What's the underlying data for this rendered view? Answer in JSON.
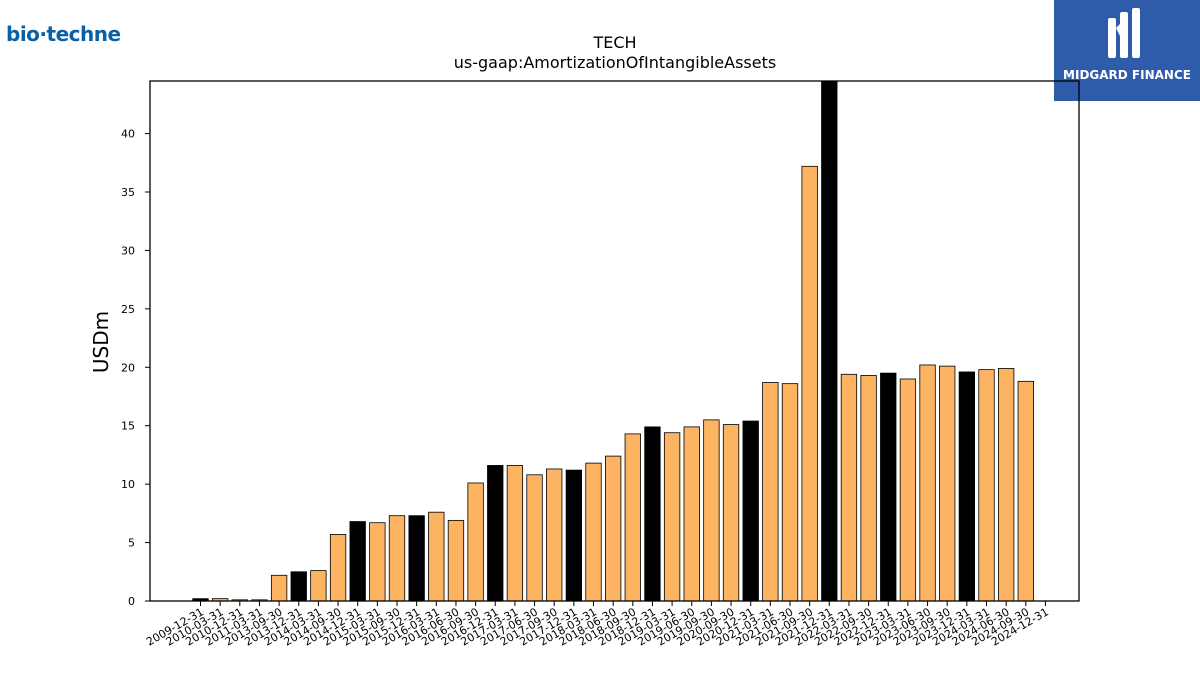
{
  "brand": {
    "logo_text": "bio·techne",
    "publisher": "MIDGARD FINANCE"
  },
  "colors": {
    "highlight": "#000000",
    "default_bar": "#fdb462",
    "bar_edge": "#000000"
  },
  "chart_data": {
    "type": "bar",
    "title": "TECH",
    "subtitle": "us-gaap:AmortizationOfIntangibleAssets",
    "xlabel": "",
    "ylabel": "USDm",
    "ylim": [
      0,
      44.5
    ],
    "yticks": [
      0,
      5,
      10,
      15,
      20,
      25,
      30,
      35,
      40
    ],
    "categories": [
      "2009-12-31",
      "2010-03-31",
      "2010-12-31",
      "2011-03-31",
      "2013-09-30",
      "2013-12-31",
      "2014-03-31",
      "2014-09-30",
      "2014-12-31",
      "2015-03-31",
      "2015-09-30",
      "2015-12-31",
      "2016-03-31",
      "2016-06-30",
      "2016-09-30",
      "2016-12-31",
      "2017-03-31",
      "2017-06-30",
      "2017-09-30",
      "2017-12-31",
      "2018-03-31",
      "2018-06-30",
      "2018-09-30",
      "2018-12-31",
      "2019-03-31",
      "2019-06-30",
      "2019-09-30",
      "2020-09-30",
      "2020-12-31",
      "2021-03-31",
      "2021-06-30",
      "2021-09-30",
      "2021-12-31",
      "2022-03-31",
      "2022-09-30",
      "2022-12-31",
      "2023-03-31",
      "2023-06-30",
      "2023-09-30",
      "2023-12-31",
      "2024-03-31",
      "2024-06-30",
      "2024-09-30",
      "2024-12-31"
    ],
    "values": [
      0.2,
      0.2,
      0.1,
      0.1,
      2.2,
      2.5,
      2.6,
      5.7,
      6.8,
      6.7,
      7.3,
      7.3,
      7.6,
      6.9,
      10.1,
      11.6,
      11.6,
      10.8,
      11.3,
      11.2,
      11.8,
      12.4,
      14.3,
      14.9,
      14.4,
      14.9,
      15.5,
      15.1,
      15.4,
      18.7,
      18.6,
      37.2,
      44.5,
      19.4,
      19.3,
      19.5,
      19.0,
      20.2,
      20.1,
      19.6,
      19.8,
      19.9,
      18.8,
      null
    ],
    "highlighted": [
      true,
      false,
      false,
      false,
      false,
      true,
      false,
      false,
      true,
      false,
      false,
      true,
      false,
      false,
      false,
      true,
      false,
      false,
      false,
      true,
      false,
      false,
      false,
      true,
      false,
      false,
      false,
      false,
      true,
      false,
      false,
      false,
      true,
      false,
      false,
      true,
      false,
      false,
      false,
      true,
      false,
      false,
      false,
      true
    ],
    "grid": false,
    "legend": "none"
  }
}
